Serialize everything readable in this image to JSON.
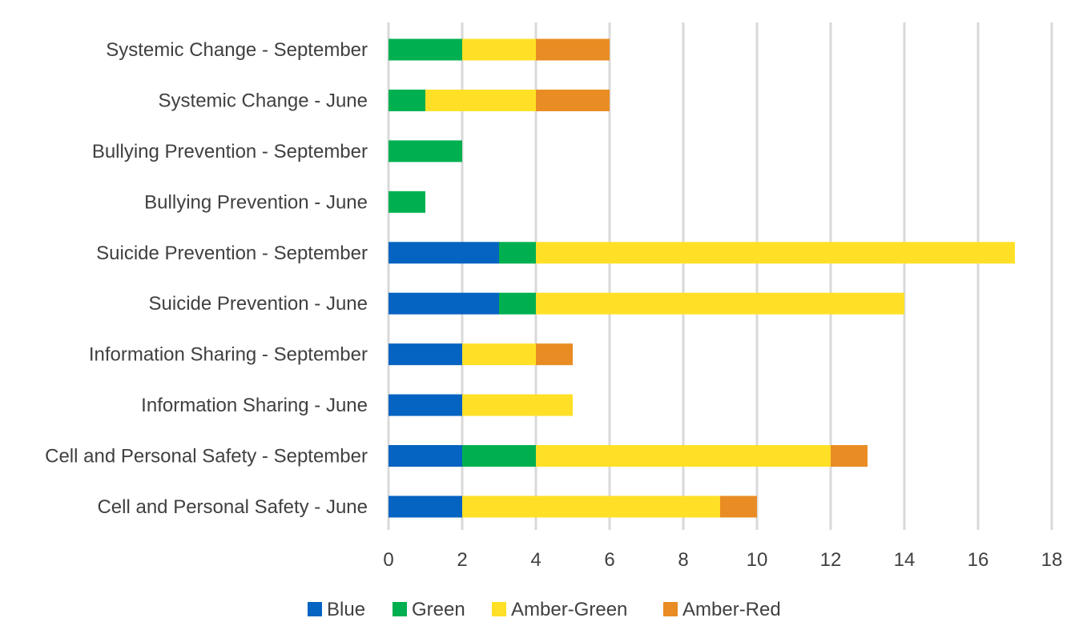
{
  "chart_data": {
    "type": "bar",
    "orientation": "horizontal",
    "stacked": true,
    "categories": [
      "Systemic Change - September",
      "Systemic Change - June",
      "Bullying Prevention - September",
      "Bullying Prevention - June",
      "Suicide Prevention - September",
      "Suicide Prevention - June",
      "Information Sharing - September",
      "Information Sharing - June",
      "Cell and Personal Safety - September",
      "Cell and Personal Safety - June"
    ],
    "series": [
      {
        "name": "Blue",
        "color": "#0563c1",
        "values": [
          0,
          0,
          0,
          0,
          3,
          3,
          2,
          2,
          2,
          2
        ]
      },
      {
        "name": "Green",
        "color": "#00b050",
        "values": [
          2,
          1,
          2,
          1,
          1,
          1,
          0,
          0,
          2,
          0
        ]
      },
      {
        "name": "Amber-Green",
        "color": "#ffe026",
        "values": [
          2,
          3,
          0,
          0,
          13,
          10,
          2,
          3,
          8,
          7
        ]
      },
      {
        "name": "Amber-Red",
        "color": "#e98c23",
        "values": [
          2,
          2,
          0,
          0,
          0,
          0,
          1,
          0,
          1,
          1
        ]
      }
    ],
    "xlim": [
      0,
      18
    ],
    "xticks": [
      "0",
      "2",
      "4",
      "6",
      "8",
      "10",
      "12",
      "14",
      "16",
      "18"
    ],
    "grid": "vertical",
    "legend": "bottom",
    "title": "",
    "xlabel": "",
    "ylabel": ""
  }
}
